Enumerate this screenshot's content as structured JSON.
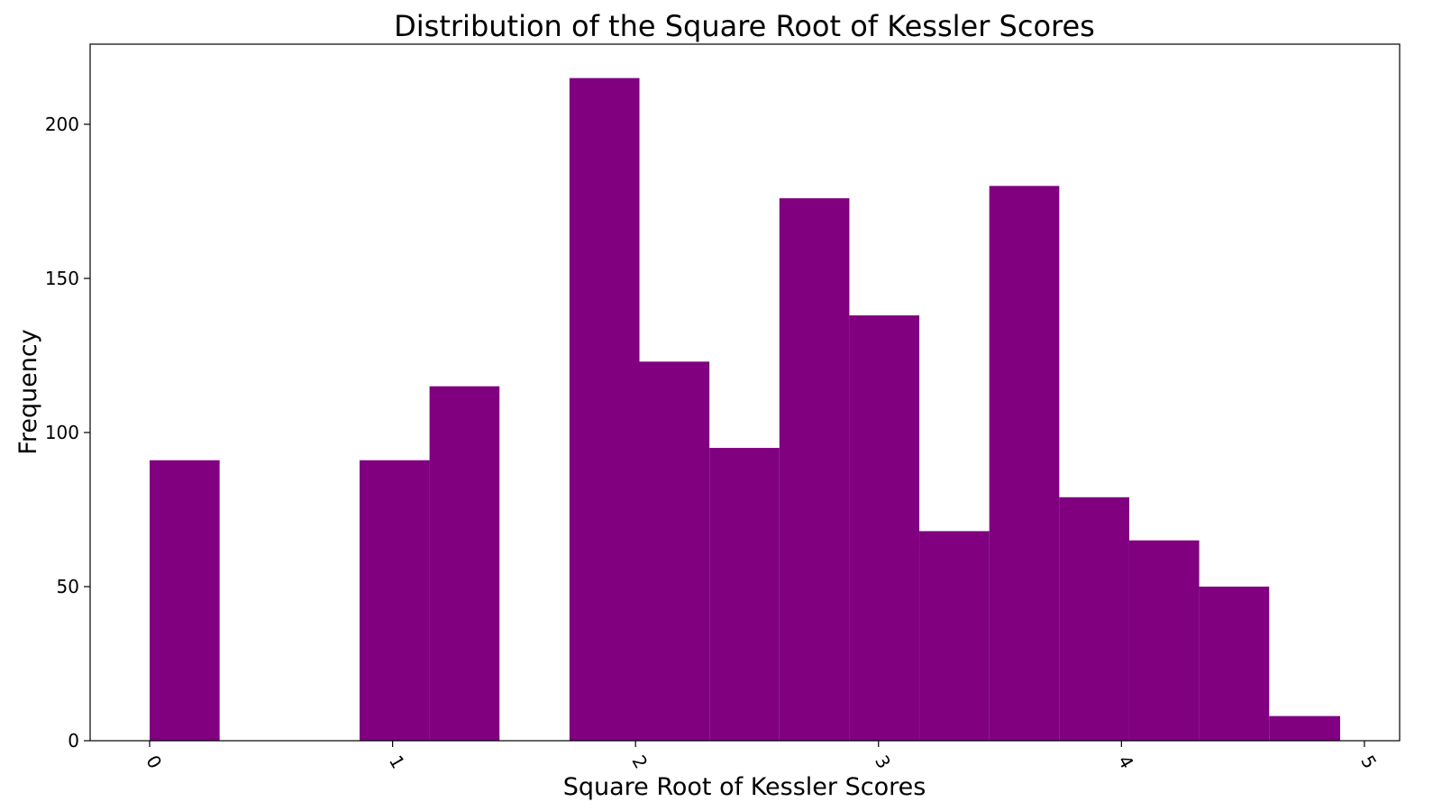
{
  "chart_data": {
    "type": "bar",
    "histogram": true,
    "title": "Distribution of the Square Root of Kessler Scores",
    "xlabel": "Square Root of Kessler Scores",
    "ylabel": "Frequency",
    "xlim": [
      -0.245,
      5.145
    ],
    "ylim": [
      0,
      226
    ],
    "xticks": [
      0,
      1,
      2,
      3,
      4,
      5
    ],
    "xtick_labels": [
      "0",
      "1",
      "2",
      "3",
      "4",
      "5"
    ],
    "xtick_rotation": 60,
    "yticks": [
      0,
      50,
      100,
      150,
      200
    ],
    "ytick_labels": [
      "0",
      "50",
      "100",
      "150",
      "200"
    ],
    "bin_edges": [
      0,
      0.288,
      0.576,
      0.864,
      1.152,
      1.44,
      1.728,
      2.016,
      2.304,
      2.592,
      2.88,
      3.168,
      3.456,
      3.744,
      4.032,
      4.32,
      4.608,
      4.9
    ],
    "values": [
      91,
      0,
      0,
      91,
      115,
      0,
      215,
      123,
      95,
      176,
      138,
      68,
      180,
      79,
      65,
      50,
      8
    ],
    "bar_color": "#800080",
    "grid": false
  }
}
